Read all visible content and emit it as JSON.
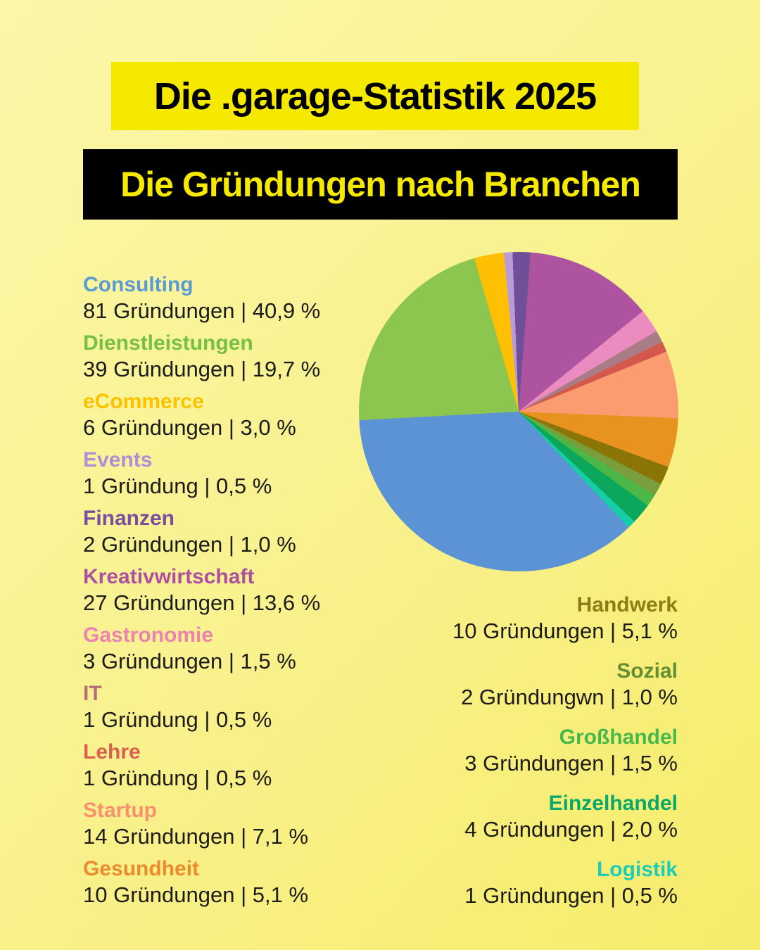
{
  "title": "Die .garage-Statistik 2025",
  "subtitle": "Die Gründungen nach Branchen",
  "theme": {
    "background_start": "#FBF7A8",
    "background_end": "#F6EC6A",
    "title_box_bg": "#F5E900",
    "title_text": "#000000",
    "subtitle_box_bg": "#000000",
    "subtitle_text": "#F5E900",
    "body_text": "#1C1C1C"
  },
  "legend": {
    "left": [
      {
        "label": "Consulting",
        "color": "#5B9BD5",
        "value": "81 Gründungen | 40,9 %"
      },
      {
        "label": "Dienstleistungen",
        "color": "#76C043",
        "value": "39 Gründungen | 19,7 %"
      },
      {
        "label": "eCommerce",
        "color": "#FFC000",
        "value": "6 Gründungen | 3,0 %"
      },
      {
        "label": "Events",
        "color": "#B08FD9",
        "value": "1 Gründung | 0,5 %"
      },
      {
        "label": "Finanzen",
        "color": "#7A4E9E",
        "value": "2 Gründungen | 1,0 %"
      },
      {
        "label": "Kreativwirtschaft",
        "color": "#AE4FA0",
        "value": "27 Gründungen | 13,6 %"
      },
      {
        "label": "Gastronomie",
        "color": "#EE82B0",
        "value": "3 Gründungen | 1,5 %"
      },
      {
        "label": "IT",
        "color": "#B76C76",
        "value": "1 Gründung | 0,5 %"
      },
      {
        "label": "Lehre",
        "color": "#DC5F50",
        "value": "1 Gründung | 0,5 %"
      },
      {
        "label": "Startup",
        "color": "#F9906F",
        "value": "14 Gründungen | 7,1 %"
      },
      {
        "label": "Gesundheit",
        "color": "#EB8B2D",
        "value": "10 Gründungen | 5,1 %"
      }
    ],
    "right": [
      {
        "label": "Handwerk",
        "color": "#8C7D15",
        "value": "10 Gründungen | 5,1 %"
      },
      {
        "label": "Sozial",
        "color": "#648E33",
        "value": "2 Gründungwn | 1,0 %"
      },
      {
        "label": "Großhandel",
        "color": "#47B84C",
        "value": "3 Gründungen | 1,5 %"
      },
      {
        "label": "Einzelhandel",
        "color": "#0BA86A",
        "value": "4 Gründungen | 2,0 %"
      },
      {
        "label": "Logistik",
        "color": "#1ECDB8",
        "value": "1 Gründungen | 0,5 %"
      }
    ]
  },
  "chart_data": {
    "type": "pie",
    "title": "Die Gründungen nach Branchen",
    "unit": "Gründungen",
    "categories": [
      "Consulting",
      "Dienstleistungen",
      "eCommerce",
      "Events",
      "Finanzen",
      "Kreativwirtschaft",
      "Gastronomie",
      "IT",
      "Lehre",
      "Startup",
      "Gesundheit",
      "Handwerk",
      "Sozial",
      "Großhandel",
      "Einzelhandel",
      "Logistik"
    ],
    "values": [
      81,
      39,
      6,
      1,
      2,
      27,
      3,
      1,
      1,
      14,
      10,
      10,
      2,
      3,
      4,
      1
    ],
    "percent_labels": [
      "40,9 %",
      "19,7 %",
      "3,0 %",
      "0,5 %",
      "1,0 %",
      "13,6 %",
      "1,5 %",
      "0,5 %",
      "0,5 %",
      "7,1 %",
      "5,1 %",
      "5,1 %",
      "1,0 %",
      "1,5 %",
      "2,0 %",
      "0,5 %"
    ],
    "legend_position": "text columns left and right of the pie",
    "grid": false,
    "render": {
      "start_deg_from_north": -2.2,
      "slices": [
        {
          "label": "Finanzen",
          "color": "#6F5098",
          "sweep_deg": 6.5
        },
        {
          "label": "Kreativwirtschaft",
          "color": "#AD539F",
          "sweep_deg": 46.7
        },
        {
          "label": "Gastronomie",
          "color": "#EB8CC1",
          "sweep_deg": 8.7
        },
        {
          "label": "IT",
          "color": "#A87D85",
          "sweep_deg": 4.4
        },
        {
          "label": "Lehre",
          "color": "#D5584C",
          "sweep_deg": 3.8
        },
        {
          "label": "Startup",
          "color": "#FB9C70",
          "sweep_deg": 24.4
        },
        {
          "label": "Gesundheit",
          "color": "#E8921F",
          "sweep_deg": 18.0
        },
        {
          "label": "Handwerk",
          "color": "#8A7506",
          "sweep_deg": 6.7
        },
        {
          "label": "Sozial",
          "color": "#7A9E3B",
          "sweep_deg": 4.5
        },
        {
          "label": "Großhandel",
          "color": "#4CB747",
          "sweep_deg": 4.5
        },
        {
          "label": "Einzelhandel",
          "color": "#0AA75C",
          "sweep_deg": 7.5
        },
        {
          "label": "Logistik",
          "color": "#16CDA7",
          "sweep_deg": 3.0
        },
        {
          "label": "Consulting",
          "color": "#5B93D5",
          "sweep_deg": 130.4
        },
        {
          "label": "Dienstleistungen",
          "color": "#8DC64F",
          "sweep_deg": 77.0
        },
        {
          "label": "eCommerce",
          "color": "#FFC003",
          "sweep_deg": 10.8
        },
        {
          "label": "Events",
          "color": "#B99BD8",
          "sweep_deg": 3.1
        }
      ]
    }
  }
}
